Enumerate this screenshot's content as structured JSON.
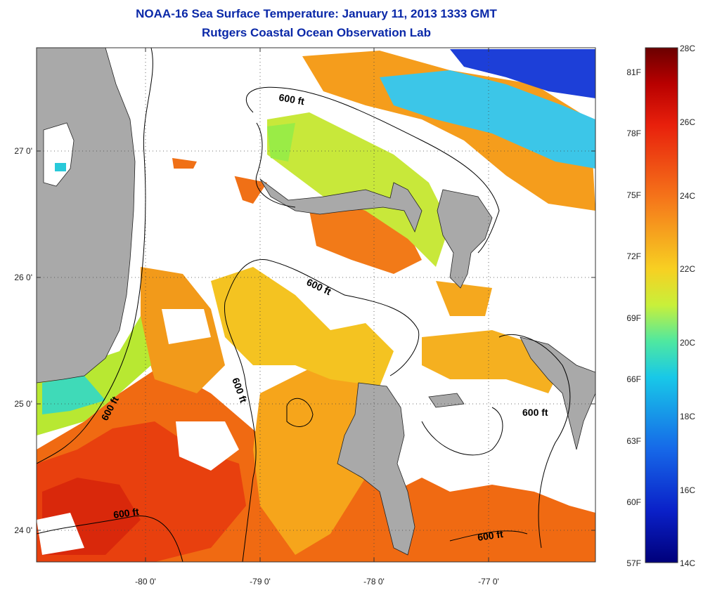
{
  "title": "NOAA-16 Sea Surface Temperature:  January 11, 2013 1333 GMT",
  "subtitle": "Rutgers Coastal Ocean Observation Lab",
  "map": {
    "lon_ticks": [
      "-80 0'",
      "-79 0'",
      "-78 0'",
      "-77 0'"
    ],
    "lat_ticks": [
      "27 0'",
      "26 0'",
      "25 0'",
      "24 0'"
    ],
    "contour_labels": [
      "600 ft",
      "600 ft",
      "600 ft",
      "600 ft",
      "600 ft",
      "600 ft"
    ],
    "land_color": "#a9a9a9",
    "no_data_color": "#ffffff",
    "grid": "dotted"
  },
  "colorbar": {
    "fahrenheit_labels": [
      "81F",
      "78F",
      "75F",
      "72F",
      "69F",
      "66F",
      "63F",
      "60F",
      "57F"
    ],
    "celsius_labels": [
      "28C",
      "26C",
      "24C",
      "22C",
      "20C",
      "18C",
      "16C",
      "14C"
    ],
    "range_c": [
      14,
      28
    ],
    "colors": [
      "#7a0000",
      "#d41a0c",
      "#f2620f",
      "#f6b21a",
      "#d8ea25",
      "#7fe36a",
      "#20d6c8",
      "#169ee8",
      "#1a4fe0",
      "#000088"
    ]
  }
}
